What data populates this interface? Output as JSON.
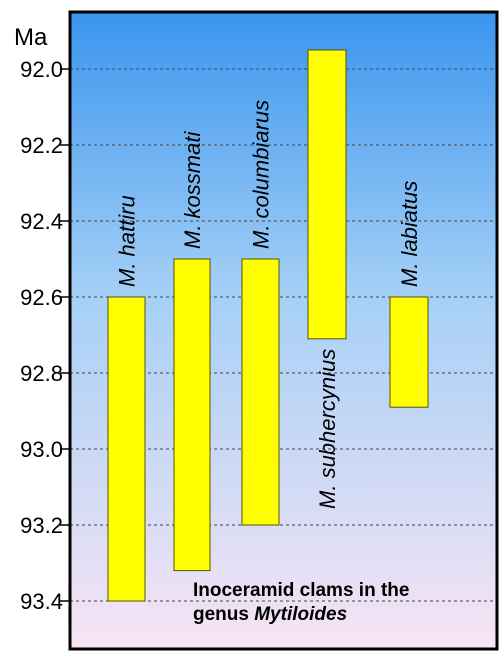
{
  "chart_data": {
    "type": "bar",
    "orientation": "range",
    "ylabel": "Ma",
    "ylim": [
      91.85,
      93.55
    ],
    "y_inverted": true,
    "yticks": [
      "92.0",
      "92.2",
      "92.4",
      "92.6",
      "92.8",
      "93.0",
      "93.2",
      "93.4"
    ],
    "ytick_values": [
      92.0,
      92.2,
      92.4,
      92.6,
      92.8,
      93.0,
      93.2,
      93.4
    ],
    "grid": true,
    "series": [
      {
        "name": "M. hattiru",
        "start": 92.6,
        "end": 93.4
      },
      {
        "name": "M. kossmati",
        "start": 92.5,
        "end": 93.32
      },
      {
        "name": "M. columbiarus",
        "start": 92.5,
        "end": 93.2
      },
      {
        "name": "M. subhercynius",
        "start": 91.95,
        "end": 92.71
      },
      {
        "name": "M. labiatus",
        "start": 92.6,
        "end": 92.89
      }
    ],
    "annotation": {
      "line1": "Inoceramid clams in the",
      "line2_prefix": "genus ",
      "line2_italic": "Mytiloides"
    },
    "colors": {
      "bar_fill": "#ffff00",
      "bar_stroke": "#555500",
      "bg_top": "#3a95ee",
      "bg_bottom": "#f8e4f4",
      "grid": "#444444"
    }
  }
}
